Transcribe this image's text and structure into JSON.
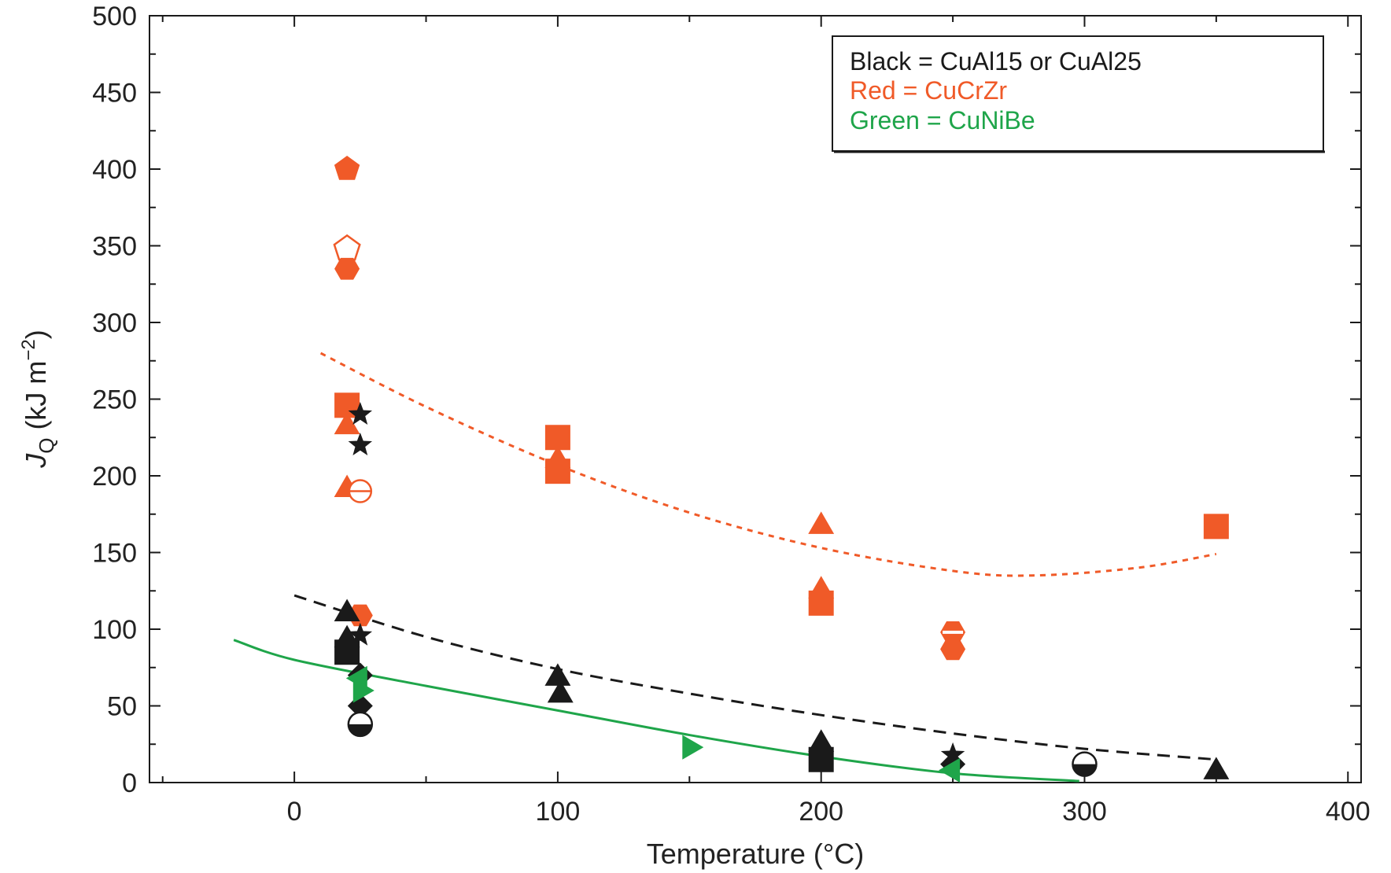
{
  "chart_data": {
    "type": "scatter",
    "title": "",
    "xlabel": "Temperature (°C)",
    "ylabel_main": "J",
    "ylabel_sub": "Q",
    "ylabel_unit_pre": " (kJ m",
    "ylabel_unit_sup": "−2",
    "ylabel_unit_post": ")",
    "xlim": [
      -55,
      405
    ],
    "ylim": [
      0,
      500
    ],
    "x_ticks": [
      0,
      100,
      200,
      300,
      400
    ],
    "x_tick_labels": [
      "0",
      "100",
      "200",
      "300",
      "400"
    ],
    "y_ticks": [
      0,
      50,
      100,
      150,
      200,
      250,
      300,
      350,
      400,
      450,
      500
    ],
    "y_tick_labels": [
      "0",
      "50",
      "100",
      "150",
      "200",
      "250",
      "300",
      "350",
      "400",
      "450",
      "500"
    ],
    "grid": false,
    "legend_position": "top-right",
    "legend": [
      {
        "label": "Black = CuAl15 or CuAl25",
        "color": "#1a1a1a"
      },
      {
        "label": "Red = CuCrZr",
        "color": "#f05a28"
      },
      {
        "label": "Green = CuNiBe",
        "color": "#1fa54a"
      }
    ],
    "colors": {
      "black": "#1a1a1a",
      "red": "#f05a28",
      "green": "#1fa54a"
    },
    "series": [
      {
        "material": "CuCrZr",
        "color": "red",
        "points": [
          {
            "x": 20,
            "y": 400,
            "marker": "pentagon"
          },
          {
            "x": 20,
            "y": 348,
            "marker": "pentagon-open"
          },
          {
            "x": 20,
            "y": 335,
            "marker": "hexagon"
          },
          {
            "x": 20,
            "y": 246,
            "marker": "square"
          },
          {
            "x": 20,
            "y": 232,
            "marker": "triangle-up"
          },
          {
            "x": 20,
            "y": 191,
            "marker": "triangle-up"
          },
          {
            "x": 25,
            "y": 190,
            "marker": "circle-half-open"
          },
          {
            "x": 25,
            "y": 109,
            "marker": "hexagon"
          },
          {
            "x": 100,
            "y": 225,
            "marker": "square"
          },
          {
            "x": 100,
            "y": 210,
            "marker": "triangle-up"
          },
          {
            "x": 100,
            "y": 203,
            "marker": "square"
          },
          {
            "x": 200,
            "y": 167,
            "marker": "triangle-up"
          },
          {
            "x": 200,
            "y": 125,
            "marker": "triangle-up"
          },
          {
            "x": 200,
            "y": 117,
            "marker": "square"
          },
          {
            "x": 250,
            "y": 98,
            "marker": "hexagon-split"
          },
          {
            "x": 250,
            "y": 87,
            "marker": "hexagon"
          },
          {
            "x": 350,
            "y": 167,
            "marker": "square"
          }
        ]
      },
      {
        "material": "CuAl15 or CuAl25",
        "color": "black",
        "points": [
          {
            "x": 25,
            "y": 240,
            "marker": "star"
          },
          {
            "x": 25,
            "y": 220,
            "marker": "star"
          },
          {
            "x": 20,
            "y": 110,
            "marker": "triangle-up"
          },
          {
            "x": 25,
            "y": 96,
            "marker": "star"
          },
          {
            "x": 20,
            "y": 93,
            "marker": "triangle-up"
          },
          {
            "x": 20,
            "y": 85,
            "marker": "square"
          },
          {
            "x": 25,
            "y": 70,
            "marker": "diamond"
          },
          {
            "x": 25,
            "y": 50,
            "marker": "diamond"
          },
          {
            "x": 25,
            "y": 38,
            "marker": "circle-half"
          },
          {
            "x": 100,
            "y": 68,
            "marker": "triangle-up"
          },
          {
            "x": 101,
            "y": 57,
            "marker": "triangle-up"
          },
          {
            "x": 200,
            "y": 25,
            "marker": "triangle-up"
          },
          {
            "x": 200,
            "y": 15,
            "marker": "square"
          },
          {
            "x": 250,
            "y": 18,
            "marker": "star"
          },
          {
            "x": 250,
            "y": 12,
            "marker": "diamond"
          },
          {
            "x": 300,
            "y": 12,
            "marker": "circle-half"
          },
          {
            "x": 350,
            "y": 7,
            "marker": "triangle-up"
          }
        ]
      },
      {
        "material": "CuNiBe",
        "color": "green",
        "points": [
          {
            "x": 25,
            "y": 68,
            "marker": "triangle-left"
          },
          {
            "x": 25,
            "y": 60,
            "marker": "triangle-right"
          },
          {
            "x": 150,
            "y": 23,
            "marker": "triangle-right"
          },
          {
            "x": 250,
            "y": 8,
            "marker": "triangle-left"
          }
        ]
      }
    ],
    "fits": [
      {
        "color": "red",
        "style": "dotted",
        "x": [
          10,
          50,
          100,
          150,
          200,
          250,
          280,
          320,
          350
        ],
        "y": [
          280,
          245,
          207,
          176,
          153,
          138,
          135,
          140,
          149
        ]
      },
      {
        "color": "black",
        "style": "dashed",
        "x": [
          0,
          50,
          100,
          150,
          200,
          250,
          300,
          350
        ],
        "y": [
          122,
          95,
          74,
          58,
          44,
          32,
          22,
          15
        ]
      },
      {
        "color": "green",
        "style": "solid",
        "x": [
          -23,
          0,
          50,
          100,
          150,
          200,
          250,
          298
        ],
        "y": [
          93,
          80,
          63,
          47,
          31,
          17,
          6,
          1
        ]
      }
    ]
  }
}
